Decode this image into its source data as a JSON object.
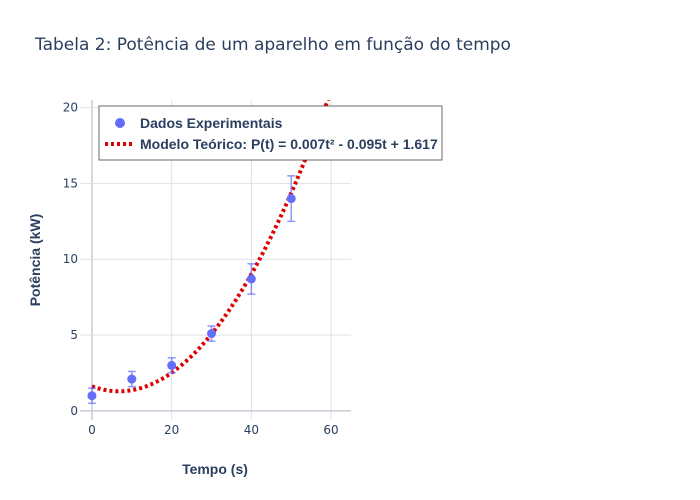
{
  "chart_data": {
    "type": "scatter",
    "title": "Tabela 2: Potência de um  aparelho em função do tempo",
    "xlabel": "Tempo (s)",
    "ylabel": "Potência (kW)",
    "xlim": [
      -3,
      65
    ],
    "ylim": [
      -0.6,
      20.5
    ],
    "x_ticks": [
      0,
      20,
      40,
      60
    ],
    "y_ticks": [
      0,
      5,
      10,
      15,
      20
    ],
    "grid": true,
    "legend_position": "top-left",
    "series": [
      {
        "name": "Dados Experimentais",
        "mode": "markers",
        "color": "#636efa",
        "x": [
          0,
          10,
          20,
          30,
          40,
          50
        ],
        "y": [
          1.0,
          2.1,
          3.0,
          5.1,
          8.7,
          14.0
        ],
        "error_y": [
          0.5,
          0.5,
          0.5,
          0.5,
          1.0,
          1.5
        ]
      },
      {
        "name": "Modelo Teórico: P(t) = 0.007t² - 0.095t + 1.617",
        "mode": "lines",
        "line_style": "dotted",
        "color": "#dd0000",
        "model": {
          "a": 0.007,
          "b": -0.095,
          "c": 1.617
        },
        "x_range": [
          0,
          60
        ]
      }
    ]
  }
}
